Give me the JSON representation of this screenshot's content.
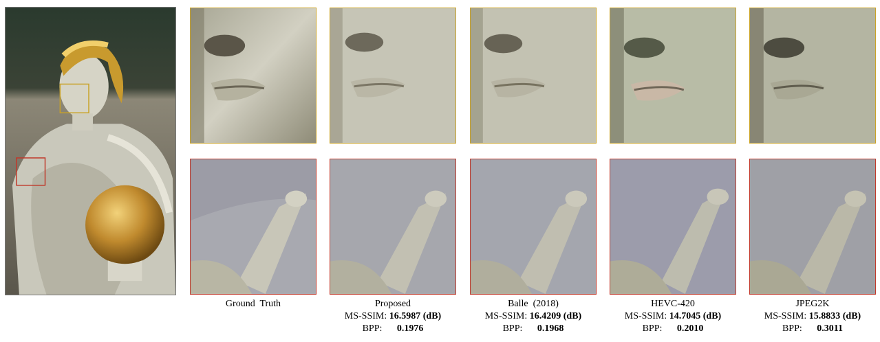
{
  "columns": [
    {
      "name": "Ground  Truth"
    },
    {
      "name": "Proposed",
      "msssim": "16.5987 (dB)",
      "bpp": "0.1976"
    },
    {
      "name": "Balle  (2018)",
      "msssim": "16.4209 (dB)",
      "bpp": "0.1968"
    },
    {
      "name": "HEVC-420",
      "msssim": "14.7045 (dB)",
      "bpp": "0.2010"
    },
    {
      "name": "JPEG2K",
      "msssim": "15.8833 (dB)",
      "bpp": "0.3011"
    }
  ],
  "labels": {
    "msssim": "MS-SSIM:",
    "bpp": "BPP:"
  },
  "colors": {
    "face_box": "#c9a227",
    "hand_box": "#c0392b"
  }
}
